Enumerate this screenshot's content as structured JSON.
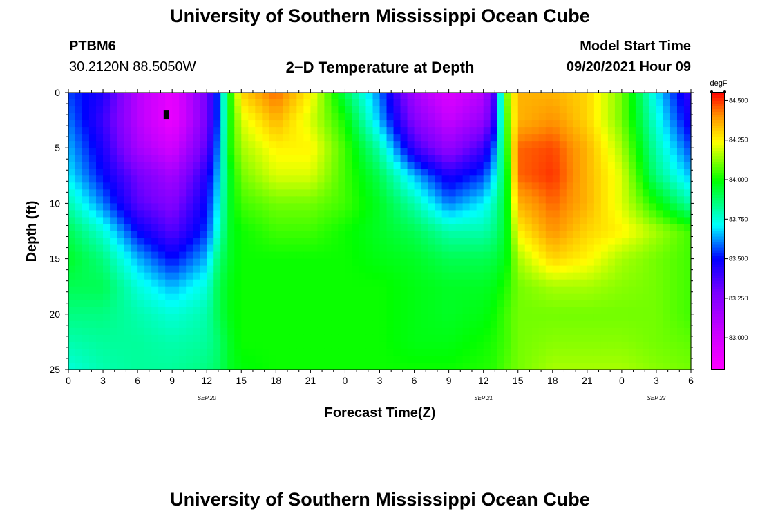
{
  "header": {
    "title": "University of Southern Mississippi Ocean Cube",
    "station_id": "PTBM6",
    "location": "30.2120N  88.5050W",
    "plot_title": "2−D Temperature at Depth",
    "model_start_label": "Model Start Time",
    "model_start_value": "09/20/2021 Hour 09"
  },
  "footer": {
    "title": "University of Southern Mississippi Ocean Cube"
  },
  "chart_data": {
    "type": "heatmap",
    "title": "2-D Temperature at Depth",
    "xlabel": "Forecast Time(Z)",
    "ylabel": "Depth (ft)",
    "x_range_hours": [
      0,
      54
    ],
    "x_ticks": [
      {
        "h": 0,
        "label": "0"
      },
      {
        "h": 3,
        "label": "3"
      },
      {
        "h": 6,
        "label": "6"
      },
      {
        "h": 9,
        "label": "9"
      },
      {
        "h": 12,
        "label": "12"
      },
      {
        "h": 15,
        "label": "15"
      },
      {
        "h": 18,
        "label": "18"
      },
      {
        "h": 21,
        "label": "21"
      },
      {
        "h": 24,
        "label": "0"
      },
      {
        "h": 27,
        "label": "3"
      },
      {
        "h": 30,
        "label": "6"
      },
      {
        "h": 33,
        "label": "9"
      },
      {
        "h": 36,
        "label": "12"
      },
      {
        "h": 39,
        "label": "15"
      },
      {
        "h": 42,
        "label": "18"
      },
      {
        "h": 45,
        "label": "21"
      },
      {
        "h": 48,
        "label": "0"
      },
      {
        "h": 51,
        "label": "3"
      },
      {
        "h": 54,
        "label": "6"
      }
    ],
    "date_labels": [
      {
        "h": 12,
        "label": "SEP 20"
      },
      {
        "h": 36,
        "label": "SEP 21"
      },
      {
        "h": 51,
        "label": "SEP 22"
      }
    ],
    "ylim": [
      0,
      25
    ],
    "y_ticks": [
      0,
      5,
      10,
      15,
      20,
      25
    ],
    "colorbar": {
      "unit": "degF",
      "min": 82.8,
      "max": 84.55,
      "ticks": [
        "84.500",
        "84.250",
        "84.000",
        "83.750",
        "83.500",
        "83.250",
        "83.000"
      ],
      "tick_values": [
        84.5,
        84.25,
        84.0,
        83.75,
        83.5,
        83.25,
        83.0
      ]
    },
    "temperature_grid": {
      "depths_ft": [
        0,
        2.5,
        5,
        7.5,
        10,
        12.5,
        15,
        17.5,
        20,
        22.5,
        25
      ],
      "times_hours": [
        0,
        3,
        6,
        9,
        12,
        13,
        14,
        15,
        18,
        21,
        24,
        27,
        30,
        33,
        36,
        37,
        38,
        39,
        42,
        45,
        48,
        51,
        54
      ],
      "values_degF": [
        [
          83.55,
          83.45,
          83.1,
          82.9,
          83.3,
          83.55,
          84.0,
          84.3,
          84.45,
          84.25,
          83.9,
          83.6,
          83.15,
          82.95,
          83.1,
          83.4,
          84.1,
          84.35,
          84.35,
          84.3,
          84.1,
          83.7,
          83.4
        ],
        [
          83.6,
          83.4,
          83.1,
          82.88,
          83.3,
          83.55,
          84.0,
          84.2,
          84.35,
          84.2,
          84.0,
          83.65,
          83.25,
          83.05,
          83.2,
          83.45,
          84.05,
          84.35,
          84.4,
          84.3,
          84.1,
          83.75,
          83.45
        ],
        [
          83.65,
          83.45,
          83.15,
          83.0,
          83.35,
          83.6,
          84.0,
          84.15,
          84.25,
          84.25,
          84.05,
          83.8,
          83.4,
          83.2,
          83.4,
          83.6,
          84.0,
          84.45,
          84.48,
          84.35,
          84.15,
          83.8,
          83.55
        ],
        [
          83.7,
          83.5,
          83.3,
          83.15,
          83.45,
          83.65,
          83.95,
          84.1,
          84.2,
          84.2,
          84.05,
          83.9,
          83.65,
          83.45,
          83.55,
          83.7,
          83.95,
          84.45,
          84.5,
          84.35,
          84.2,
          83.85,
          83.65
        ],
        [
          83.8,
          83.6,
          83.35,
          83.25,
          83.5,
          83.7,
          83.95,
          84.05,
          84.1,
          84.1,
          84.05,
          83.95,
          83.8,
          83.6,
          83.7,
          83.8,
          83.95,
          84.35,
          84.45,
          84.35,
          84.2,
          84.0,
          83.8
        ],
        [
          83.9,
          83.75,
          83.5,
          83.35,
          83.55,
          83.75,
          83.95,
          84.0,
          84.05,
          84.05,
          84.0,
          83.95,
          83.9,
          83.8,
          83.8,
          83.85,
          83.95,
          84.25,
          84.4,
          84.3,
          84.25,
          84.15,
          84.05
        ],
        [
          83.95,
          83.85,
          83.65,
          83.5,
          83.65,
          83.85,
          83.95,
          84.0,
          84.0,
          84.0,
          84.0,
          83.97,
          83.95,
          83.9,
          83.9,
          83.92,
          83.97,
          84.15,
          84.3,
          84.25,
          84.15,
          84.1,
          84.05
        ],
        [
          83.9,
          83.9,
          83.75,
          83.65,
          83.75,
          83.9,
          83.97,
          84.0,
          84.0,
          84.0,
          84.0,
          84.0,
          83.97,
          83.95,
          83.95,
          83.97,
          84.02,
          84.1,
          84.15,
          84.15,
          84.12,
          84.1,
          84.05
        ],
        [
          83.85,
          83.85,
          83.8,
          83.75,
          83.8,
          83.9,
          83.97,
          84.0,
          84.0,
          84.0,
          84.0,
          84.0,
          83.97,
          83.95,
          83.97,
          84.0,
          84.05,
          84.1,
          84.1,
          84.1,
          84.1,
          84.1,
          84.05
        ],
        [
          83.8,
          83.82,
          83.82,
          83.8,
          83.82,
          83.87,
          83.95,
          84.0,
          84.0,
          84.0,
          84.0,
          84.0,
          83.97,
          83.97,
          84.0,
          84.02,
          84.05,
          84.1,
          84.12,
          84.12,
          84.12,
          84.1,
          84.08
        ],
        [
          83.75,
          83.8,
          83.82,
          83.82,
          83.85,
          83.88,
          83.95,
          83.98,
          84.0,
          84.0,
          84.0,
          84.0,
          84.0,
          84.0,
          84.02,
          84.03,
          84.07,
          84.1,
          84.15,
          84.15,
          84.15,
          84.12,
          84.1
        ]
      ]
    },
    "annotations": [
      {
        "type": "marker",
        "hour": 8.5,
        "depth_ft": 2.0
      }
    ]
  }
}
